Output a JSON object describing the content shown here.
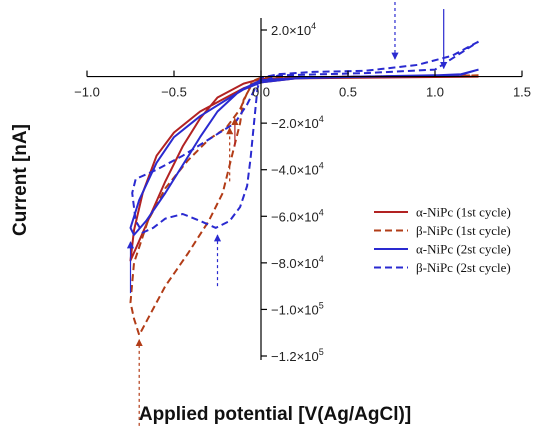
{
  "chart_data": {
    "type": "line",
    "xlabel": "Applied potential [V(Ag/AgCl)]",
    "ylabel": "Current [nA]",
    "xlim": [
      -1.0,
      1.5
    ],
    "ylim": [
      -120000,
      20000
    ],
    "x_ticks": [
      {
        "value": -1.0,
        "label": "−1.0"
      },
      {
        "value": -0.5,
        "label": "−0.5"
      },
      {
        "value": 0.0,
        "label": "0.0"
      },
      {
        "value": 0.5,
        "label": "0.5"
      },
      {
        "value": 1.0,
        "label": "1.0"
      },
      {
        "value": 1.5,
        "label": "1.5"
      }
    ],
    "y_ticks": [
      {
        "value": 20000,
        "mant": "2.0×10",
        "exp": "4"
      },
      {
        "value": -20000,
        "mant": "−2.0×10",
        "exp": "4"
      },
      {
        "value": -40000,
        "mant": "−4.0×10",
        "exp": "4"
      },
      {
        "value": -60000,
        "mant": "−6.0×10",
        "exp": "4"
      },
      {
        "value": -80000,
        "mant": "−8.0×10",
        "exp": "4"
      },
      {
        "value": -100000,
        "mant": "−1.0×10",
        "exp": "5"
      },
      {
        "value": -120000,
        "mant": "−1.2×10",
        "exp": "5"
      }
    ],
    "grid": false,
    "legend_position": "right",
    "series": [
      {
        "name": "α-NiPc (1st cycle)",
        "color": "#b22222",
        "dash": "solid",
        "points": [
          [
            1.25,
            0
          ],
          [
            1.0,
            -200
          ],
          [
            0.7,
            -400
          ],
          [
            0.4,
            -600
          ],
          [
            0.2,
            -800
          ],
          [
            0.0,
            -2500
          ],
          [
            -0.1,
            -5000
          ],
          [
            -0.2,
            -9000
          ],
          [
            -0.35,
            -15000
          ],
          [
            -0.5,
            -24000
          ],
          [
            -0.6,
            -34000
          ],
          [
            -0.68,
            -50000
          ],
          [
            -0.73,
            -66000
          ],
          [
            -0.75,
            -79000
          ],
          [
            -0.72,
            -74000
          ],
          [
            -0.65,
            -62000
          ],
          [
            -0.55,
            -45000
          ],
          [
            -0.45,
            -30000
          ],
          [
            -0.35,
            -18000
          ],
          [
            -0.25,
            -9000
          ],
          [
            -0.1,
            -3000
          ],
          [
            0.0,
            -1000
          ],
          [
            0.3,
            -400
          ],
          [
            0.8,
            -200
          ],
          [
            1.25,
            0
          ]
        ]
      },
      {
        "name": "β-NiPc (1st cycle)",
        "color": "#b23c17",
        "dash": "dashed",
        "points": [
          [
            1.25,
            500
          ],
          [
            0.6,
            0
          ],
          [
            0.1,
            -500
          ],
          [
            -0.05,
            -3000
          ],
          [
            -0.1,
            -10000
          ],
          [
            -0.12,
            -20000
          ],
          [
            -0.17,
            -35000
          ],
          [
            -0.22,
            -50000
          ],
          [
            -0.3,
            -62000
          ],
          [
            -0.42,
            -76000
          ],
          [
            -0.55,
            -90000
          ],
          [
            -0.65,
            -104000
          ],
          [
            -0.7,
            -111000
          ],
          [
            -0.73,
            -104000
          ],
          [
            -0.75,
            -97000
          ],
          [
            -0.73,
            -80000
          ],
          [
            -0.65,
            -62000
          ],
          [
            -0.55,
            -48000
          ],
          [
            -0.42,
            -36000
          ],
          [
            -0.3,
            -27000
          ],
          [
            -0.2,
            -22000
          ],
          [
            -0.12,
            -14000
          ],
          [
            -0.05,
            -2000
          ],
          [
            0.0,
            -500
          ],
          [
            0.5,
            0
          ],
          [
            1.25,
            500
          ]
        ]
      },
      {
        "name": "α-NiPc (2st cycle)",
        "color": "#2a2ad0",
        "dash": "solid",
        "points": [
          [
            1.25,
            3000
          ],
          [
            1.15,
            1000
          ],
          [
            0.9,
            200
          ],
          [
            0.5,
            -200
          ],
          [
            0.2,
            -800
          ],
          [
            0.0,
            -2500
          ],
          [
            -0.1,
            -5500
          ],
          [
            -0.2,
            -10000
          ],
          [
            -0.35,
            -17000
          ],
          [
            -0.5,
            -26000
          ],
          [
            -0.6,
            -37000
          ],
          [
            -0.7,
            -53000
          ],
          [
            -0.75,
            -65000
          ],
          [
            -0.73,
            -68000
          ],
          [
            -0.66,
            -62000
          ],
          [
            -0.55,
            -50000
          ],
          [
            -0.45,
            -38000
          ],
          [
            -0.35,
            -26000
          ],
          [
            -0.25,
            -15000
          ],
          [
            -0.12,
            -6000
          ],
          [
            0.0,
            -1500
          ],
          [
            0.3,
            -300
          ],
          [
            0.8,
            300
          ],
          [
            1.15,
            800
          ],
          [
            1.25,
            3000
          ]
        ]
      },
      {
        "name": "β-NiPc (2st cycle)",
        "color": "#2a2ad0",
        "dash": "dashed",
        "points": [
          [
            1.25,
            15000
          ],
          [
            1.1,
            9000
          ],
          [
            0.9,
            5000
          ],
          [
            0.6,
            2500
          ],
          [
            0.3,
            2000
          ],
          [
            0.1,
            1000
          ],
          [
            0.0,
            -500
          ],
          [
            -0.02,
            -5000
          ],
          [
            -0.04,
            -20000
          ],
          [
            -0.06,
            -35000
          ],
          [
            -0.08,
            -47000
          ],
          [
            -0.12,
            -56000
          ],
          [
            -0.18,
            -62000
          ],
          [
            -0.26,
            -65000
          ],
          [
            -0.35,
            -62000
          ],
          [
            -0.45,
            -59000
          ],
          [
            -0.55,
            -61000
          ],
          [
            -0.62,
            -65000
          ],
          [
            -0.68,
            -67000
          ],
          [
            -0.72,
            -62000
          ],
          [
            -0.74,
            -50000
          ],
          [
            -0.72,
            -44000
          ],
          [
            -0.6,
            -40000
          ],
          [
            -0.45,
            -34000
          ],
          [
            -0.3,
            -27000
          ],
          [
            -0.15,
            -20000
          ],
          [
            -0.08,
            -12000
          ],
          [
            -0.02,
            -3000
          ],
          [
            0.1,
            500
          ],
          [
            0.6,
            1500
          ],
          [
            1.0,
            3000
          ],
          [
            1.25,
            15000
          ]
        ]
      }
    ],
    "annotations": [
      {
        "type": "arrow",
        "color": "#b22222",
        "dash": "solid",
        "x": -0.15,
        "y_from": -30000,
        "y_to": -18000
      },
      {
        "type": "arrow",
        "color": "#b23c17",
        "dash": "dashed",
        "x": -0.18,
        "y_from": -45000,
        "y_to": -22000
      },
      {
        "type": "arrow",
        "color": "#b23c17",
        "dash": "dashed",
        "x": -0.7,
        "y_from": -150000,
        "y_to": -113000
      },
      {
        "type": "arrow",
        "color": "#2a2ad0",
        "dash": "solid",
        "x": -0.75,
        "y_from": -93000,
        "y_to": -71000
      },
      {
        "type": "arrow",
        "color": "#2a2ad0",
        "dash": "dashed",
        "x": -0.25,
        "y_from": -90000,
        "y_to": -68000
      },
      {
        "type": "arrow",
        "color": "#2a2ad0",
        "dash": "dashed",
        "x": 0.77,
        "y_from": 32000,
        "y_to": 7500
      },
      {
        "type": "arrow",
        "color": "#2a2ad0",
        "dash": "solid",
        "x": 1.05,
        "y_from": 29000,
        "y_to": 3500
      }
    ]
  }
}
